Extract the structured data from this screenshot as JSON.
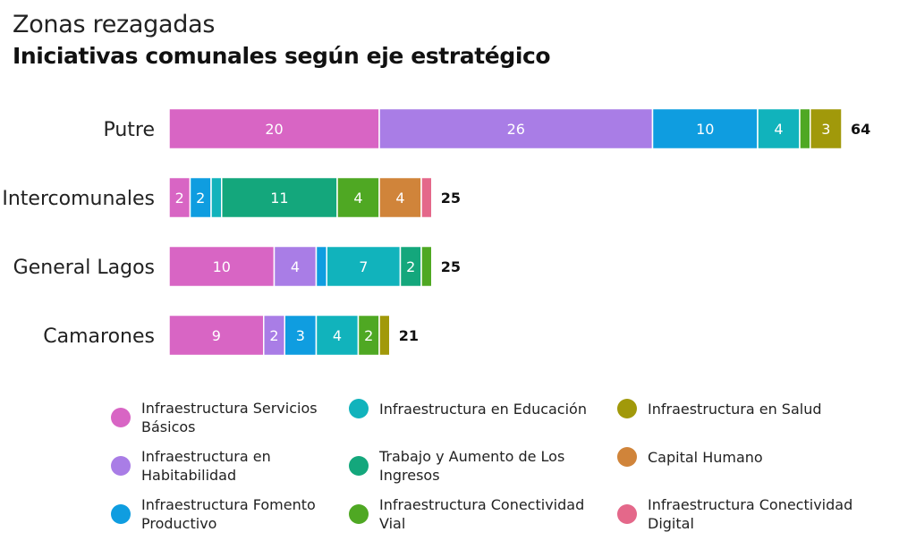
{
  "header": {
    "title": "Zonas rezagadas",
    "subtitle": "Iniciativas comunales según eje estratégico"
  },
  "chart_data": {
    "type": "bar",
    "orientation": "horizontal",
    "stacked": true,
    "title": "Zonas rezagadas",
    "subtitle": "Iniciativas comunales según eje estratégico",
    "categories": [
      "Putre",
      "Intercomunales",
      "General Lagos",
      "Camarones"
    ],
    "totals": [
      64,
      25,
      25,
      21
    ],
    "series": [
      {
        "name": "Infraestructura Servicios Básicos",
        "color": "#d865c4",
        "values": [
          20,
          2,
          10,
          9
        ]
      },
      {
        "name": "Infraestructura en Habitabilidad",
        "color": "#a97de6",
        "values": [
          26,
          0,
          4,
          2
        ]
      },
      {
        "name": "Infraestructura Fomento Productivo",
        "color": "#0f9de0",
        "values": [
          10,
          2,
          1,
          3
        ]
      },
      {
        "name": "Infraestructura en Educación",
        "color": "#11b3bc",
        "values": [
          4,
          1,
          7,
          4
        ]
      },
      {
        "name": "Trabajo y Aumento de Los Ingresos",
        "color": "#14a77c",
        "values": [
          0,
          11,
          2,
          0
        ]
      },
      {
        "name": "Infraestructura Conectividad Vial",
        "color": "#4fa823",
        "values": [
          1,
          4,
          1,
          2
        ]
      },
      {
        "name": "Infraestructura en Salud",
        "color": "#a1990a",
        "values": [
          3,
          0,
          0,
          1
        ]
      },
      {
        "name": "Capital Humano",
        "color": "#d0843a",
        "values": [
          0,
          4,
          0,
          0
        ]
      },
      {
        "name": "Infraestructura Conectividad Digital",
        "color": "#e4688a",
        "values": [
          0,
          1,
          0,
          0
        ]
      }
    ],
    "xlim": [
      0,
      64
    ],
    "grid": false,
    "legend_position": "bottom"
  },
  "legend": [
    {
      "label": "Infraestructura Servicios Básicos",
      "color": "#d865c4"
    },
    {
      "label": "Infraestructura en Educación",
      "color": "#11b3bc"
    },
    {
      "label": "Infraestructura en Salud",
      "color": "#a1990a"
    },
    {
      "label": "Infraestructura en Habitabilidad",
      "color": "#a97de6"
    },
    {
      "label": "Trabajo y Aumento de Los Ingresos",
      "color": "#14a77c"
    },
    {
      "label": "Capital Humano",
      "color": "#d0843a"
    },
    {
      "label": "Infraestructura Fomento Productivo",
      "color": "#0f9de0"
    },
    {
      "label": "Infraestructura Conectividad Vial",
      "color": "#4fa823"
    },
    {
      "label": "Infraestructura Conectividad Digital",
      "color": "#e4688a"
    }
  ]
}
